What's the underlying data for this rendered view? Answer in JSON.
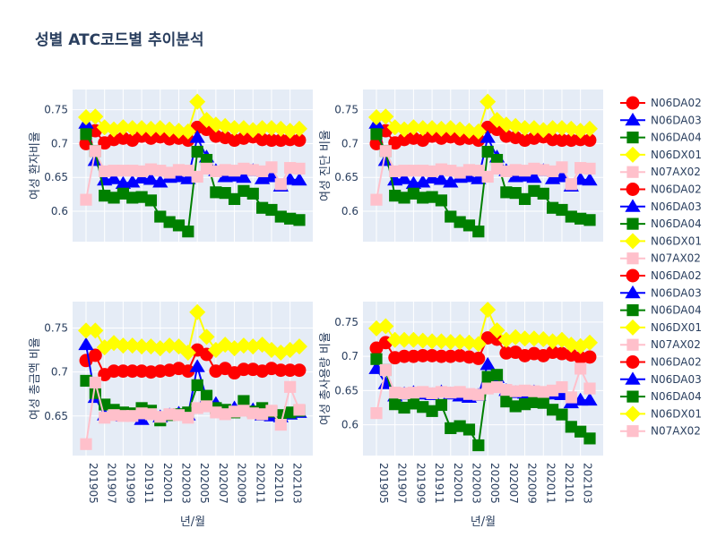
{
  "title": "성별 ATC코드별 추이분석",
  "chart_data": {
    "type": "line",
    "title": "성별 ATC코드별 추이분석",
    "x_tick_labels": [
      "201905",
      "201907",
      "201909",
      "201911",
      "202001",
      "202003",
      "202005",
      "202007",
      "202009",
      "202011",
      "202101",
      "202103"
    ],
    "x": [
      "201905",
      "201906",
      "201907",
      "201908",
      "201909",
      "201910",
      "201911",
      "201912",
      "202001",
      "202002",
      "202003",
      "202004",
      "202005",
      "202006",
      "202007",
      "202008",
      "202009",
      "202010",
      "202011",
      "202012",
      "202101",
      "202102",
      "202103",
      "202104"
    ],
    "xlabel": "년/월",
    "legend": [
      {
        "name": "N06DA02",
        "color": "#ff0000",
        "marker": "circle"
      },
      {
        "name": "N06DA03",
        "color": "#0000ff",
        "marker": "triangle"
      },
      {
        "name": "N06DA04",
        "color": "#008000",
        "marker": "square"
      },
      {
        "name": "N06DX01",
        "color": "#ffff00",
        "marker": "diamond"
      },
      {
        "name": "N07AX02",
        "color": "#ffc0cb",
        "marker": "square"
      },
      {
        "name": "N06DA02",
        "color": "#ff0000",
        "marker": "circle"
      },
      {
        "name": "N06DA03",
        "color": "#0000ff",
        "marker": "triangle"
      },
      {
        "name": "N06DA04",
        "color": "#008000",
        "marker": "square"
      },
      {
        "name": "N06DX01",
        "color": "#ffff00",
        "marker": "diamond"
      },
      {
        "name": "N07AX02",
        "color": "#ffc0cb",
        "marker": "square"
      },
      {
        "name": "N06DA02",
        "color": "#ff0000",
        "marker": "circle"
      },
      {
        "name": "N06DA03",
        "color": "#0000ff",
        "marker": "triangle"
      },
      {
        "name": "N06DA04",
        "color": "#008000",
        "marker": "square"
      },
      {
        "name": "N06DX01",
        "color": "#ffff00",
        "marker": "diamond"
      },
      {
        "name": "N07AX02",
        "color": "#ffc0cb",
        "marker": "square"
      },
      {
        "name": "N06DA02",
        "color": "#ff0000",
        "marker": "circle"
      },
      {
        "name": "N06DA03",
        "color": "#0000ff",
        "marker": "triangle"
      },
      {
        "name": "N06DA04",
        "color": "#008000",
        "marker": "square"
      },
      {
        "name": "N06DX01",
        "color": "#ffff00",
        "marker": "diamond"
      },
      {
        "name": "N07AX02",
        "color": "#ffc0cb",
        "marker": "square"
      }
    ],
    "subplots": [
      {
        "ylabel": "여성 환자비율",
        "ylim": [
          0.555,
          0.78
        ],
        "yticks": [
          0.6,
          0.65,
          0.7,
          0.75
        ],
        "show_xticks": false,
        "series": [
          {
            "name": "N06DA02",
            "color": "#ff0000",
            "marker": "circle",
            "values": [
              0.7,
              0.719,
              0.701,
              0.706,
              0.708,
              0.705,
              0.711,
              0.708,
              0.71,
              0.707,
              0.708,
              0.705,
              0.724,
              0.721,
              0.711,
              0.709,
              0.705,
              0.708,
              0.71,
              0.706,
              0.705,
              0.705,
              0.706,
              0.705
            ]
          },
          {
            "name": "N06DA03",
            "color": "#0000ff",
            "marker": "triangle",
            "values": [
              0.73,
              0.675,
              0.646,
              0.648,
              0.641,
              0.643,
              0.649,
              0.647,
              0.643,
              0.65,
              0.651,
              0.648,
              0.709,
              0.68,
              0.66,
              0.651,
              0.652,
              0.65,
              0.66,
              0.648,
              0.651,
              0.637,
              0.647,
              0.646
            ]
          },
          {
            "name": "N06DA04",
            "color": "#008000",
            "marker": "square",
            "values": [
              0.714,
              0.689,
              0.623,
              0.62,
              0.626,
              0.62,
              0.621,
              0.616,
              0.592,
              0.584,
              0.579,
              0.57,
              0.688,
              0.676,
              0.628,
              0.627,
              0.618,
              0.63,
              0.626,
              0.605,
              0.602,
              0.592,
              0.589,
              0.587
            ]
          },
          {
            "name": "N06DX01",
            "color": "#ffff00",
            "marker": "diamond",
            "values": [
              0.739,
              0.74,
              0.724,
              0.721,
              0.724,
              0.723,
              0.723,
              0.722,
              0.723,
              0.721,
              0.719,
              0.718,
              0.762,
              0.735,
              0.728,
              0.726,
              0.723,
              0.723,
              0.72,
              0.723,
              0.723,
              0.722,
              0.719,
              0.722
            ]
          },
          {
            "name": "N07AX02",
            "color": "#ffc0cb",
            "marker": "square",
            "values": [
              0.617,
              0.689,
              0.659,
              0.66,
              0.66,
              0.66,
              0.659,
              0.662,
              0.66,
              0.657,
              0.661,
              0.66,
              0.651,
              0.663,
              0.659,
              0.661,
              0.66,
              0.663,
              0.661,
              0.659,
              0.665,
              0.64,
              0.664,
              0.663
            ]
          }
        ]
      },
      {
        "ylabel": "여성 진단 비율",
        "ylim": [
          0.555,
          0.78
        ],
        "yticks": [
          0.6,
          0.65,
          0.7,
          0.75
        ],
        "show_xticks": false,
        "series": [
          {
            "name": "N06DA02",
            "color": "#ff0000",
            "marker": "circle",
            "values": [
              0.7,
              0.719,
              0.701,
              0.706,
              0.708,
              0.705,
              0.711,
              0.708,
              0.71,
              0.707,
              0.708,
              0.705,
              0.724,
              0.721,
              0.711,
              0.709,
              0.705,
              0.708,
              0.71,
              0.706,
              0.705,
              0.705,
              0.706,
              0.705
            ]
          },
          {
            "name": "N06DA03",
            "color": "#0000ff",
            "marker": "triangle",
            "values": [
              0.73,
              0.675,
              0.646,
              0.648,
              0.641,
              0.643,
              0.649,
              0.647,
              0.643,
              0.65,
              0.651,
              0.648,
              0.709,
              0.68,
              0.66,
              0.651,
              0.652,
              0.65,
              0.66,
              0.648,
              0.651,
              0.637,
              0.647,
              0.646
            ]
          },
          {
            "name": "N06DA04",
            "color": "#008000",
            "marker": "square",
            "values": [
              0.714,
              0.689,
              0.623,
              0.62,
              0.626,
              0.62,
              0.621,
              0.616,
              0.592,
              0.584,
              0.579,
              0.57,
              0.688,
              0.676,
              0.628,
              0.627,
              0.618,
              0.63,
              0.626,
              0.605,
              0.602,
              0.592,
              0.589,
              0.587
            ]
          },
          {
            "name": "N06DX01",
            "color": "#ffff00",
            "marker": "diamond",
            "values": [
              0.739,
              0.74,
              0.724,
              0.721,
              0.724,
              0.723,
              0.723,
              0.722,
              0.723,
              0.721,
              0.719,
              0.718,
              0.762,
              0.735,
              0.728,
              0.726,
              0.723,
              0.723,
              0.72,
              0.723,
              0.723,
              0.722,
              0.719,
              0.722
            ]
          },
          {
            "name": "N07AX02",
            "color": "#ffc0cb",
            "marker": "square",
            "values": [
              0.617,
              0.689,
              0.659,
              0.66,
              0.66,
              0.66,
              0.659,
              0.662,
              0.66,
              0.657,
              0.661,
              0.66,
              0.651,
              0.663,
              0.659,
              0.661,
              0.66,
              0.663,
              0.661,
              0.659,
              0.665,
              0.64,
              0.664,
              0.663
            ]
          }
        ]
      },
      {
        "ylabel": "여성 총금액 비율",
        "ylim": [
          0.605,
          0.78
        ],
        "yticks": [
          0.65,
          0.7,
          0.75
        ],
        "show_xticks": true,
        "series": [
          {
            "name": "N06DA02",
            "color": "#ff0000",
            "marker": "circle",
            "values": [
              0.713,
              0.719,
              0.697,
              0.701,
              0.701,
              0.701,
              0.701,
              0.7,
              0.701,
              0.702,
              0.704,
              0.701,
              0.725,
              0.72,
              0.701,
              0.704,
              0.699,
              0.703,
              0.703,
              0.701,
              0.704,
              0.702,
              0.702,
              0.702
            ]
          },
          {
            "name": "N06DA03",
            "color": "#0000ff",
            "marker": "triangle",
            "values": [
              0.731,
              0.671,
              0.651,
              0.653,
              0.65,
              0.651,
              0.646,
              0.654,
              0.649,
              0.651,
              0.653,
              0.651,
              0.706,
              0.67,
              0.664,
              0.655,
              0.659,
              0.657,
              0.657,
              0.651,
              0.65,
              0.649,
              0.652,
              0.654
            ]
          },
          {
            "name": "N06DA04",
            "color": "#008000",
            "marker": "square",
            "values": [
              0.69,
              0.676,
              0.663,
              0.657,
              0.654,
              0.653,
              0.659,
              0.656,
              0.645,
              0.651,
              0.652,
              0.654,
              0.685,
              0.673,
              0.659,
              0.657,
              0.654,
              0.667,
              0.655,
              0.659,
              0.655,
              0.651,
              0.654,
              0.656
            ]
          },
          {
            "name": "N06DX01",
            "color": "#ffff00",
            "marker": "diamond",
            "values": [
              0.747,
              0.747,
              0.728,
              0.733,
              0.73,
              0.73,
              0.729,
              0.729,
              0.727,
              0.73,
              0.729,
              0.722,
              0.768,
              0.74,
              0.725,
              0.731,
              0.727,
              0.73,
              0.729,
              0.731,
              0.725,
              0.722,
              0.725,
              0.729
            ]
          },
          {
            "name": "N07AX02",
            "color": "#ffc0cb",
            "marker": "square",
            "values": [
              0.618,
              0.688,
              0.648,
              0.651,
              0.65,
              0.65,
              0.653,
              0.652,
              0.649,
              0.652,
              0.651,
              0.648,
              0.659,
              0.661,
              0.654,
              0.652,
              0.655,
              0.656,
              0.653,
              0.652,
              0.656,
              0.64,
              0.683,
              0.657
            ]
          }
        ]
      },
      {
        "ylabel": "여성 총사용량 비율",
        "ylim": [
          0.555,
          0.78
        ],
        "yticks": [
          0.6,
          0.65,
          0.7,
          0.75
        ],
        "show_xticks": true,
        "series": [
          {
            "name": "N06DA02",
            "color": "#ff0000",
            "marker": "circle",
            "values": [
              0.712,
              0.72,
              0.698,
              0.7,
              0.7,
              0.701,
              0.701,
              0.7,
              0.7,
              0.701,
              0.699,
              0.697,
              0.727,
              0.725,
              0.705,
              0.706,
              0.701,
              0.704,
              0.701,
              0.706,
              0.704,
              0.702,
              0.698,
              0.699
            ]
          },
          {
            "name": "N06DA03",
            "color": "#0000ff",
            "marker": "triangle",
            "values": [
              0.682,
              0.66,
              0.642,
              0.645,
              0.647,
              0.645,
              0.644,
              0.648,
              0.645,
              0.642,
              0.64,
              0.643,
              0.688,
              0.669,
              0.65,
              0.647,
              0.646,
              0.648,
              0.645,
              0.645,
              0.644,
              0.632,
              0.636,
              0.636
            ]
          },
          {
            "name": "N06DA04",
            "color": "#008000",
            "marker": "square",
            "values": [
              0.696,
              0.68,
              0.63,
              0.625,
              0.631,
              0.626,
              0.62,
              0.629,
              0.595,
              0.598,
              0.593,
              0.57,
              0.67,
              0.673,
              0.634,
              0.627,
              0.63,
              0.633,
              0.632,
              0.622,
              0.615,
              0.597,
              0.59,
              0.58
            ]
          },
          {
            "name": "N06DX01",
            "color": "#ffff00",
            "marker": "diamond",
            "values": [
              0.741,
              0.744,
              0.724,
              0.724,
              0.724,
              0.723,
              0.722,
              0.722,
              0.721,
              0.721,
              0.72,
              0.718,
              0.768,
              0.738,
              0.724,
              0.728,
              0.726,
              0.726,
              0.725,
              0.722,
              0.724,
              0.717,
              0.715,
              0.72
            ]
          },
          {
            "name": "N07AX02",
            "color": "#ffc0cb",
            "marker": "square",
            "values": [
              0.617,
              0.68,
              0.647,
              0.646,
              0.647,
              0.648,
              0.646,
              0.648,
              0.647,
              0.648,
              0.645,
              0.644,
              0.653,
              0.655,
              0.651,
              0.649,
              0.65,
              0.649,
              0.648,
              0.65,
              0.655,
              0.64,
              0.682,
              0.653
            ]
          }
        ]
      }
    ]
  }
}
